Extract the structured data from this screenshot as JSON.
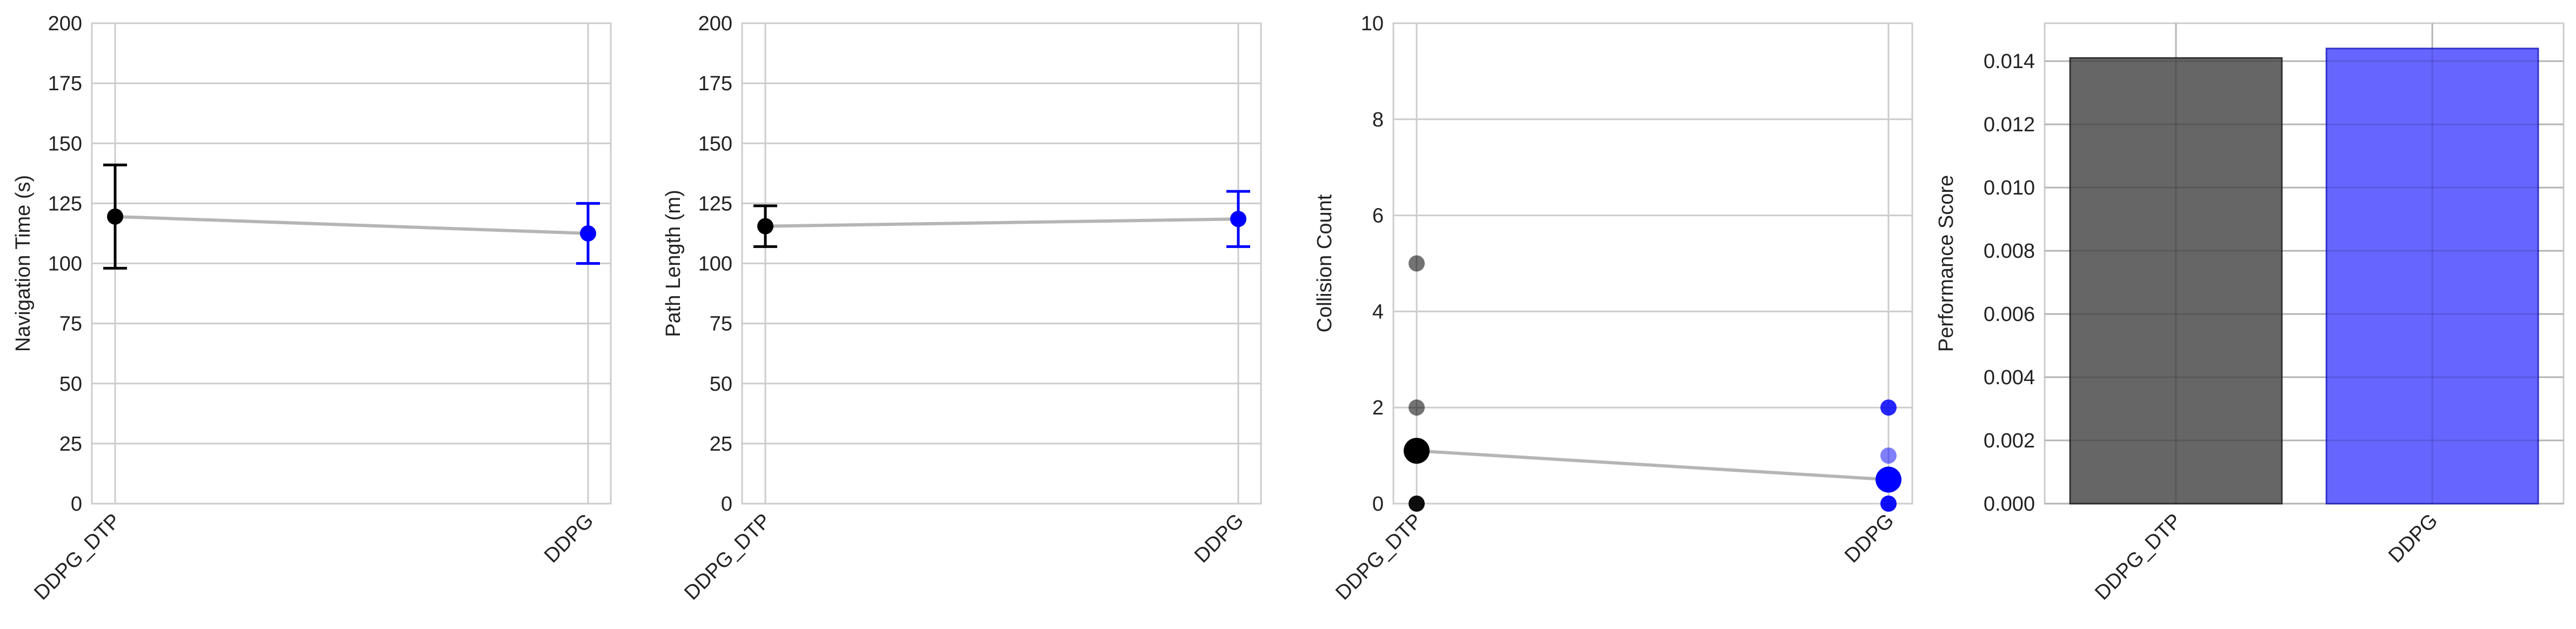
{
  "chart_data": [
    {
      "type": "line",
      "ylabel": "Navigation Time (s)",
      "categories": [
        "DDPG_DTP",
        "DDPG"
      ],
      "ylim": [
        0,
        200
      ],
      "yticks": [
        0,
        25,
        50,
        75,
        100,
        125,
        150,
        175,
        200
      ],
      "grid": true,
      "means": [
        119.5,
        112.5
      ],
      "errors": [
        21.5,
        12.5
      ],
      "colors": [
        "#000000",
        "#0000ff"
      ],
      "line_color": "#b5b5b5"
    },
    {
      "type": "line",
      "ylabel": "Path Length (m)",
      "categories": [
        "DDPG_DTP",
        "DDPG"
      ],
      "ylim": [
        0,
        200
      ],
      "yticks": [
        0,
        25,
        50,
        75,
        100,
        125,
        150,
        175,
        200
      ],
      "grid": true,
      "means": [
        115.5,
        118.5
      ],
      "errors": [
        8.5,
        11.5
      ],
      "colors": [
        "#000000",
        "#0000ff"
      ],
      "line_color": "#b5b5b5"
    },
    {
      "type": "scatter",
      "ylabel": "Collision Count",
      "categories": [
        "DDPG_DTP",
        "DDPG"
      ],
      "ylim": [
        0,
        10
      ],
      "yticks": [
        0,
        2,
        4,
        6,
        8,
        10
      ],
      "grid": true,
      "means": [
        1.1,
        0.5
      ],
      "points": [
        {
          "category": "DDPG_DTP",
          "value": 5,
          "alpha": 0.55
        },
        {
          "category": "DDPG_DTP",
          "value": 2,
          "alpha": 0.55
        },
        {
          "category": "DDPG_DTP",
          "value": 0,
          "alpha": 0.95
        },
        {
          "category": "DDPG",
          "value": 2,
          "alpha": 0.85
        },
        {
          "category": "DDPG",
          "value": 1,
          "alpha": 0.5
        },
        {
          "category": "DDPG",
          "value": 0,
          "alpha": 0.95
        }
      ],
      "colors": [
        "#000000",
        "#0000ff"
      ],
      "line_color": "#b5b5b5"
    },
    {
      "type": "bar",
      "ylabel": "Performance Score",
      "categories": [
        "DDPG_DTP",
        "DDPG"
      ],
      "values": [
        0.0141,
        0.0144
      ],
      "ylim": [
        0,
        0.0152
      ],
      "yticks": [
        0.0,
        0.002,
        0.004,
        0.006,
        0.008,
        0.01,
        0.012,
        0.014
      ],
      "grid": true,
      "colors": [
        "#666666",
        "#6666ff"
      ],
      "edge_colors": [
        "#333333",
        "#3333cc"
      ]
    }
  ]
}
